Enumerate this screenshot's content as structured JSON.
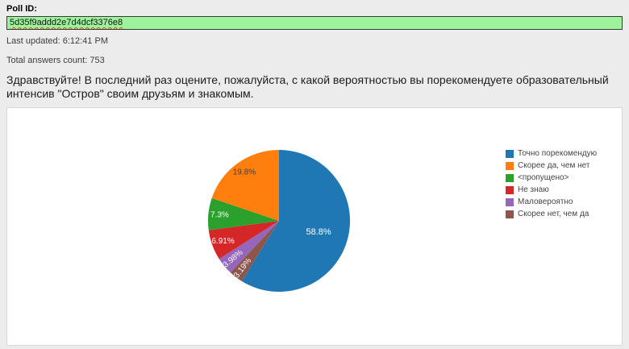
{
  "page": {
    "poll_id_label": "Poll ID:",
    "poll_id_value": "5d35f9addd2e7d4dcf3376e8",
    "last_updated": "Last updated: 6:12:41 PM",
    "total_answers": "Total answers count: 753",
    "question": "Здравствуйте! В последний раз оцените, пожалуйста, с какой вероятностью вы порекомендуете образовательный интенсив \"Остров\" своим друзьям и знакомым.",
    "input_bg_color": "#9df29c"
  },
  "chart_data": {
    "type": "pie",
    "title": "",
    "labels": [
      "Точно порекомендую",
      "Скорее да, чем нет",
      "<пропущено>",
      "Не знаю",
      "Маловероятно",
      "Скорее нет, чем да"
    ],
    "values": [
      58.8,
      19.8,
      7.3,
      6.91,
      3.98,
      3.19
    ],
    "display_percents": [
      "58.8%",
      "19.8%",
      "7.3%",
      "6.91%",
      "3.98%",
      "3.19%"
    ],
    "colors": [
      "#1f77b4",
      "#ff7f0e",
      "#2ca02c",
      "#d62728",
      "#9467bd",
      "#8c564b"
    ],
    "label_text_colors": [
      "#ffffff",
      "#3d3d3d",
      "#ffffff",
      "#ffffff",
      "#ffffff",
      "#ffffff"
    ],
    "order_clockwise_from_top": [
      0,
      5,
      4,
      3,
      2,
      1
    ],
    "legend_position": "right",
    "start_angle_deg": 0,
    "direction": "clockwise"
  }
}
